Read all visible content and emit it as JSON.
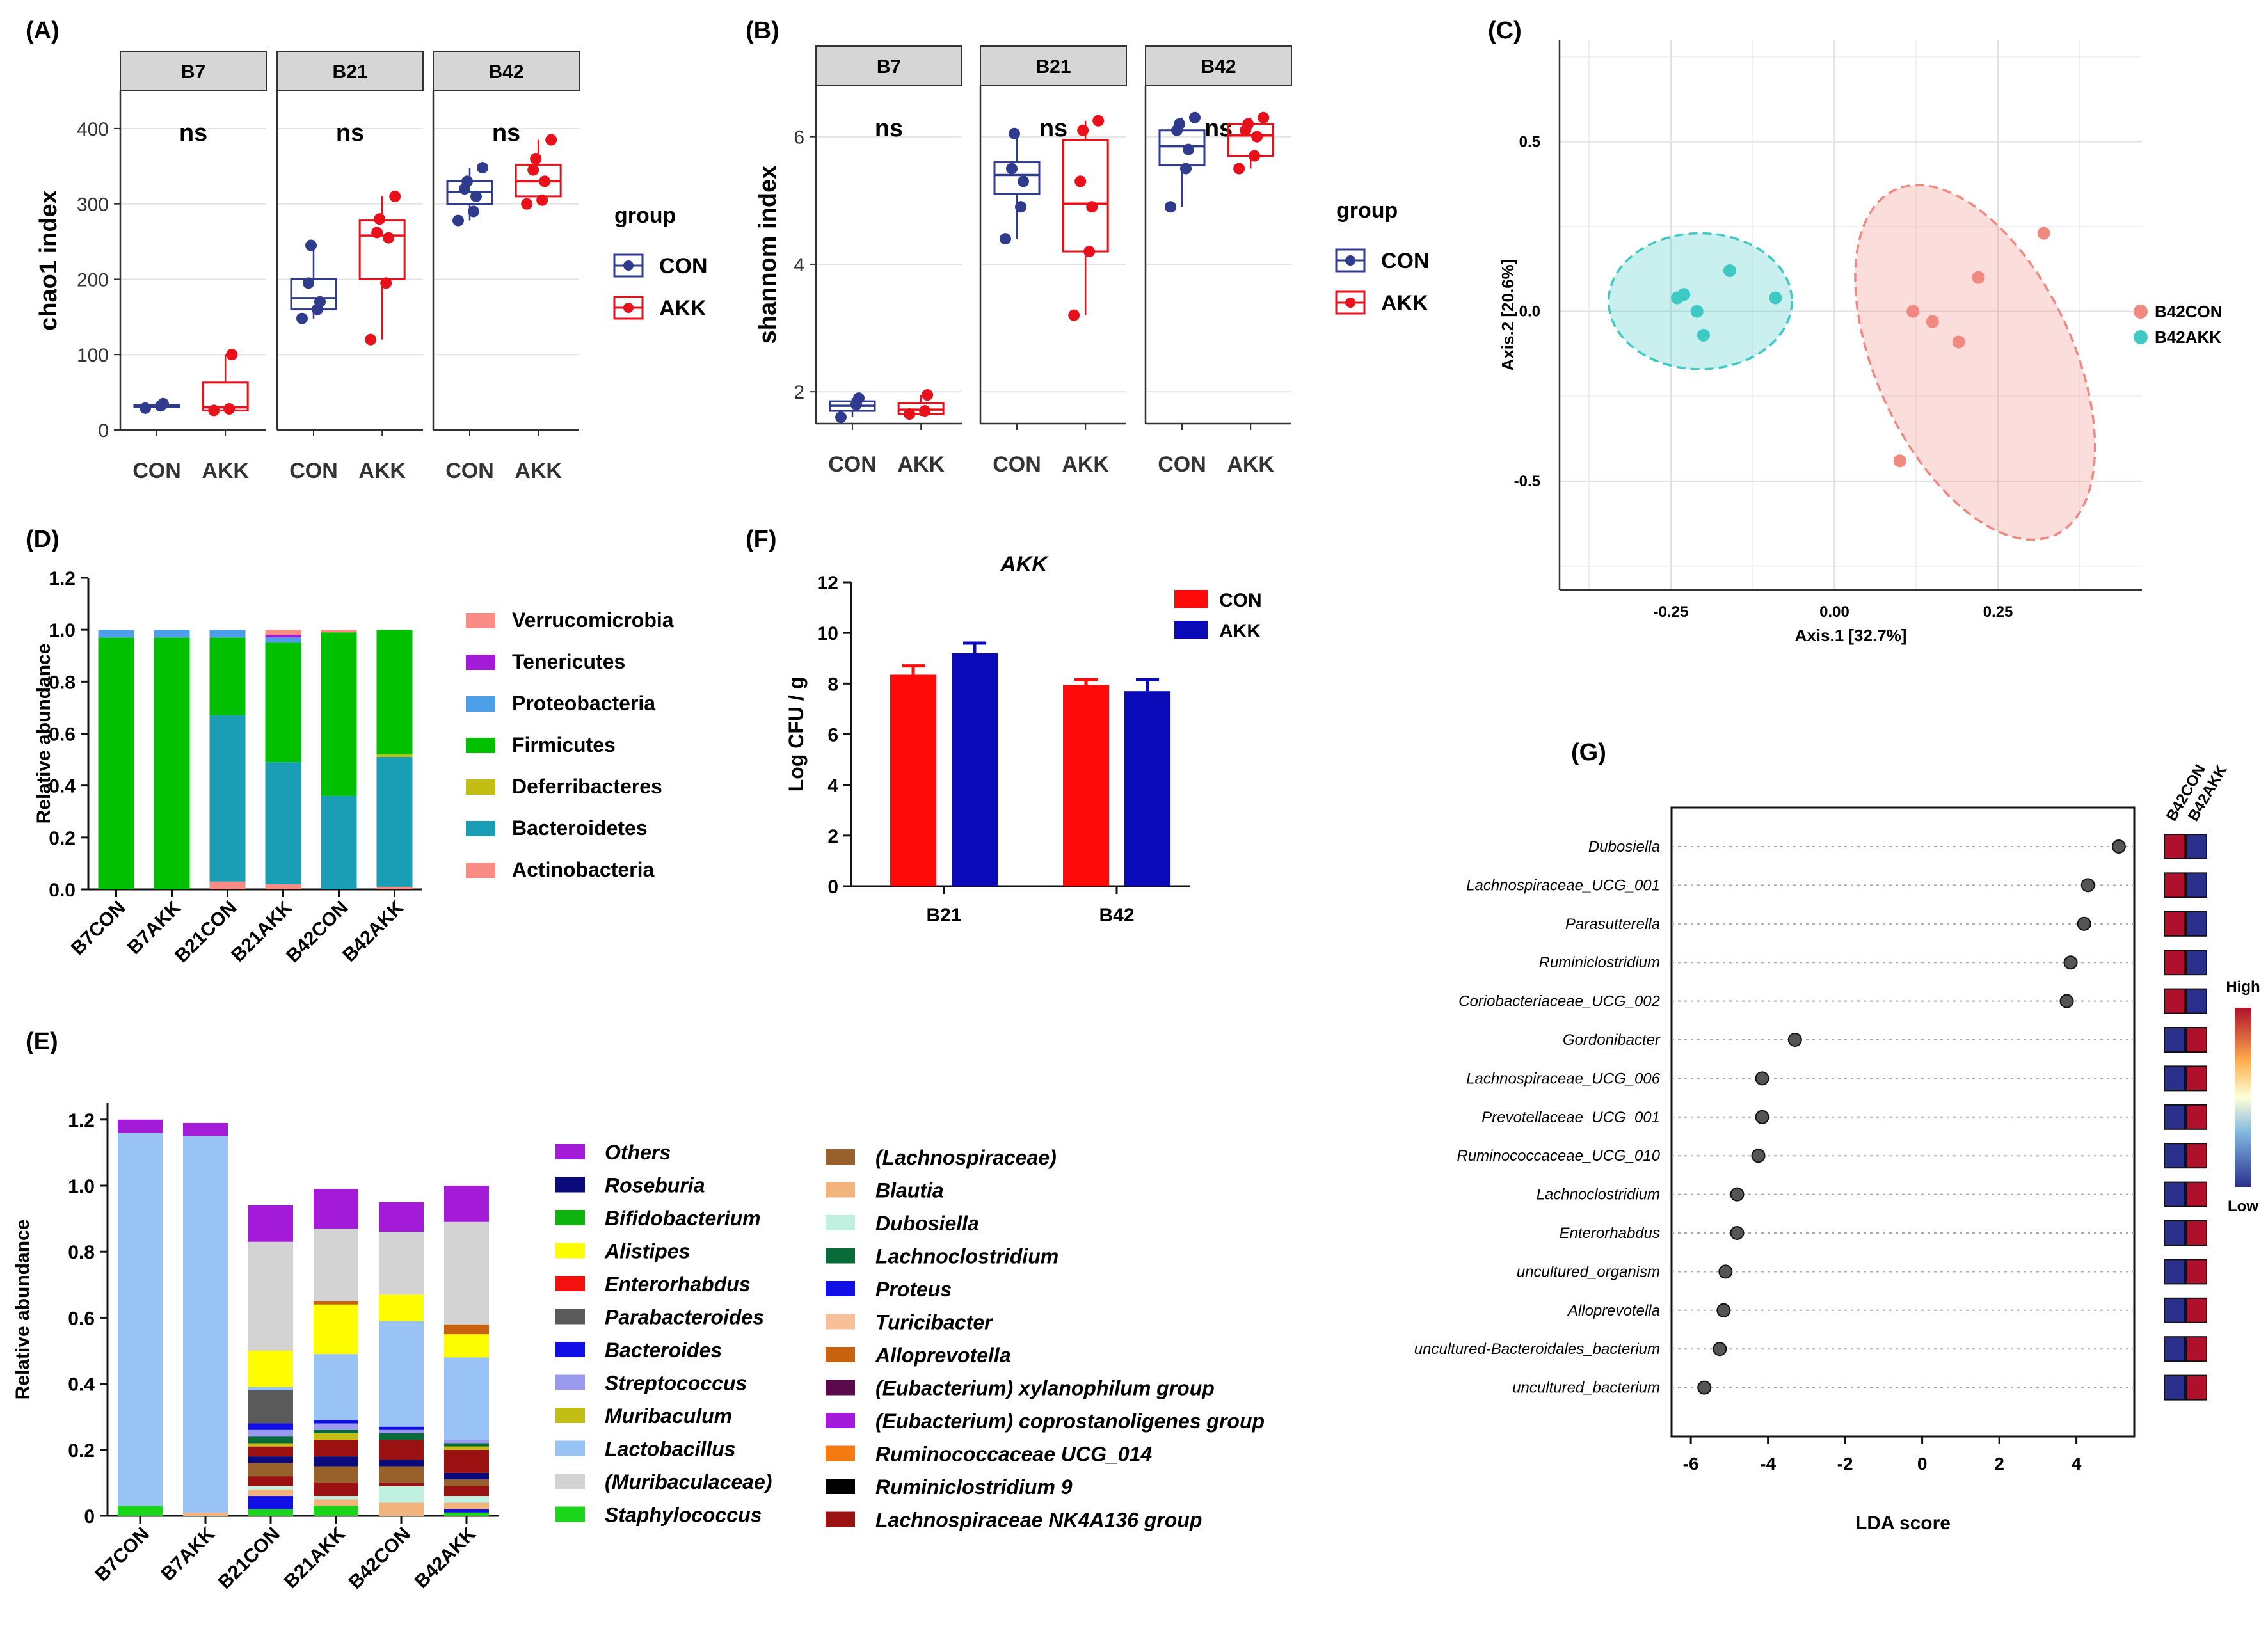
{
  "chart_data": [
    {
      "panel": "(A)",
      "type": "box",
      "ylabel": "chao1 index",
      "ylim": [
        0,
        450
      ],
      "yticks": [
        0,
        100,
        200,
        300,
        400
      ],
      "facets": [
        "B7",
        "B21",
        "B42"
      ],
      "groups": [
        "CON",
        "AKK"
      ],
      "legend_title": "group",
      "legend_labels": [
        "CON",
        "AKK"
      ],
      "sig_labels": [
        "ns",
        "ns",
        "ns"
      ],
      "boxes": [
        {
          "facet": "B7",
          "group": "CON",
          "q1": 31,
          "median": 32,
          "q3": 33,
          "wlo": 29,
          "whi": 35,
          "points": [
            29,
            32,
            35
          ]
        },
        {
          "facet": "B7",
          "group": "AKK",
          "q1": 26,
          "median": 30,
          "q3": 63,
          "wlo": 24,
          "whi": 100,
          "points": [
            26,
            28,
            100
          ]
        },
        {
          "facet": "B21",
          "group": "CON",
          "q1": 160,
          "median": 175,
          "q3": 200,
          "wlo": 148,
          "whi": 245,
          "points": [
            148,
            160,
            170,
            195,
            245
          ]
        },
        {
          "facet": "B21",
          "group": "AKK",
          "q1": 200,
          "median": 258,
          "q3": 278,
          "wlo": 120,
          "whi": 310,
          "points": [
            120,
            195,
            255,
            262,
            280,
            310
          ]
        },
        {
          "facet": "B42",
          "group": "CON",
          "q1": 300,
          "median": 316,
          "q3": 330,
          "wlo": 278,
          "whi": 348,
          "points": [
            278,
            290,
            310,
            320,
            330,
            348
          ]
        },
        {
          "facet": "B42",
          "group": "AKK",
          "q1": 310,
          "median": 330,
          "q3": 352,
          "wlo": 300,
          "whi": 385,
          "points": [
            300,
            305,
            330,
            345,
            360,
            385
          ]
        }
      ]
    },
    {
      "panel": "(B)",
      "type": "box",
      "ylabel": "shannom index",
      "ylim": [
        1.5,
        6.8
      ],
      "yticks": [
        2,
        4,
        6
      ],
      "facets": [
        "B7",
        "B21",
        "B42"
      ],
      "groups": [
        "CON",
        "AKK"
      ],
      "legend_title": "group",
      "legend_labels": [
        "CON",
        "AKK"
      ],
      "sig_labels": [
        "ns",
        "ns",
        "ns"
      ],
      "boxes": [
        {
          "facet": "B7",
          "group": "CON",
          "q1": 1.7,
          "median": 1.78,
          "q3": 1.85,
          "wlo": 1.6,
          "whi": 1.9,
          "points": [
            1.6,
            1.8,
            1.9
          ]
        },
        {
          "facet": "B7",
          "group": "AKK",
          "q1": 1.65,
          "median": 1.72,
          "q3": 1.82,
          "wlo": 1.62,
          "whi": 1.95,
          "points": [
            1.65,
            1.7,
            1.95
          ]
        },
        {
          "facet": "B21",
          "group": "CON",
          "q1": 5.1,
          "median": 5.4,
          "q3": 5.6,
          "wlo": 4.4,
          "whi": 6.05,
          "points": [
            4.4,
            4.9,
            5.3,
            5.5,
            6.05
          ]
        },
        {
          "facet": "B21",
          "group": "AKK",
          "q1": 4.2,
          "median": 4.95,
          "q3": 5.95,
          "wlo": 3.2,
          "whi": 6.25,
          "points": [
            3.2,
            4.2,
            4.9,
            5.3,
            6.1,
            6.25
          ]
        },
        {
          "facet": "B42",
          "group": "CON",
          "q1": 5.55,
          "median": 5.85,
          "q3": 6.1,
          "wlo": 4.9,
          "whi": 6.3,
          "points": [
            4.9,
            5.5,
            5.8,
            6.1,
            6.2,
            6.3
          ]
        },
        {
          "facet": "B42",
          "group": "AKK",
          "q1": 5.7,
          "median": 6.02,
          "q3": 6.2,
          "wlo": 5.5,
          "whi": 6.3,
          "points": [
            5.5,
            5.7,
            6.0,
            6.1,
            6.2,
            6.3
          ]
        }
      ]
    },
    {
      "panel": "(C)",
      "type": "scatter",
      "xlabel": "Axis.1  [32.7%]",
      "ylabel": "Axis.2  [20.6%]",
      "xlim": [
        -0.42,
        0.47
      ],
      "ylim": [
        -0.82,
        0.8
      ],
      "xticks": [
        -0.25,
        0.0,
        0.25
      ],
      "xtick_labels": [
        "-0.25",
        "0.00",
        "0.25"
      ],
      "yticks": [
        -0.5,
        0.0,
        0.5
      ],
      "ytick_labels": [
        "-0.5",
        "0.0",
        "0.5"
      ],
      "series": [
        {
          "name": "B42CON",
          "color": "#f08a80",
          "points": [
            [
              0.32,
              0.23
            ],
            [
              0.22,
              0.1
            ],
            [
              0.12,
              0.0
            ],
            [
              0.15,
              -0.03
            ],
            [
              0.19,
              -0.09
            ],
            [
              0.1,
              -0.44
            ]
          ],
          "ellipse": {
            "cx": 0.215,
            "cy": -0.15,
            "rx": 0.15,
            "ry": 0.56,
            "angle_deg": -25
          }
        },
        {
          "name": "B42AKK",
          "color": "#3ec9c4",
          "points": [
            [
              -0.24,
              0.04
            ],
            [
              -0.23,
              0.05
            ],
            [
              -0.21,
              0.0
            ],
            [
              -0.2,
              -0.07
            ],
            [
              -0.16,
              0.12
            ],
            [
              -0.09,
              0.04
            ]
          ],
          "ellipse": {
            "cx": -0.205,
            "cy": 0.03,
            "rx": 0.14,
            "ry": 0.2,
            "angle_deg": 0
          }
        }
      ],
      "legend": [
        "B42CON",
        "B42AKK"
      ]
    },
    {
      "panel": "(D)",
      "type": "stacked_bar",
      "ylabel": "Relative abundance",
      "ylim": [
        0,
        1.2
      ],
      "yticks": [
        0.0,
        0.2,
        0.4,
        0.6,
        0.8,
        1.0,
        1.2
      ],
      "ytick_labels": [
        "0.0",
        "0.2",
        "0.4",
        "0.6",
        "0.8",
        "1.0",
        "1.2"
      ],
      "categories": [
        "B7CON",
        "B7AKK",
        "B21CON",
        "B21AKK",
        "B42CON",
        "B42AKK"
      ],
      "legend_order": [
        "Verrucomicrobia",
        "Tenericutes",
        "Proteobacteria",
        "Firmicutes",
        "Deferribacteres",
        "Bacteroidetes",
        "Actinobacteria"
      ],
      "series": [
        {
          "name": "Actinobacteria",
          "color": "#f98c84",
          "values": [
            0.0,
            0.0,
            0.03,
            0.02,
            0.0,
            0.01
          ]
        },
        {
          "name": "Bacteroidetes",
          "color": "#1a9eb6",
          "values": [
            0.0,
            0.0,
            0.64,
            0.47,
            0.36,
            0.5
          ]
        },
        {
          "name": "Deferribacteres",
          "color": "#c3bd14",
          "values": [
            0.0,
            0.0,
            0.0,
            0.0,
            0.0,
            0.01
          ]
        },
        {
          "name": "Firmicutes",
          "color": "#00c000",
          "values": [
            0.97,
            0.97,
            0.3,
            0.46,
            0.63,
            0.48
          ]
        },
        {
          "name": "Proteobacteria",
          "color": "#4d9fea",
          "values": [
            0.03,
            0.03,
            0.03,
            0.02,
            0.0,
            0.0
          ]
        },
        {
          "name": "Tenericutes",
          "color": "#a41ad9",
          "values": [
            0.0,
            0.0,
            0.0,
            0.01,
            0.0,
            0.0
          ]
        },
        {
          "name": "Verrucomicrobia",
          "color": "#f98c84",
          "values": [
            0.0,
            0.0,
            0.0,
            0.02,
            0.01,
            0.0
          ]
        }
      ]
    },
    {
      "panel": "(E)",
      "type": "stacked_bar",
      "ylabel": "Relative abundance",
      "ylim": [
        0,
        1.25
      ],
      "yticks": [
        0.0,
        0.2,
        0.4,
        0.6,
        0.8,
        1.0,
        1.2
      ],
      "ytick_labels": [
        "0",
        "0.2",
        "0.4",
        "0.6",
        "0.8",
        "1.0",
        "1.2"
      ],
      "categories": [
        "B7CON",
        "B7AKK",
        "B21CON",
        "B21AKK",
        "B42CON",
        "B42AKK"
      ],
      "series": [
        {
          "name": "Staphylococcus",
          "color": "#1ad51a",
          "values": [
            0.03,
            0.0,
            0.02,
            0.03,
            0.0,
            0.01
          ]
        },
        {
          "name": "Bacteroides",
          "color": "#1010e6",
          "values": [
            0.0,
            0.0,
            0.04,
            0.0,
            0.0,
            0.01
          ]
        },
        {
          "name": "Blautia",
          "color": "#f0b47c",
          "values": [
            0.0,
            0.01,
            0.02,
            0.02,
            0.04,
            0.02
          ]
        },
        {
          "name": "Dubosiella",
          "color": "#bff0e0",
          "values": [
            0.0,
            0.0,
            0.01,
            0.01,
            0.05,
            0.02
          ]
        },
        {
          "name": "Lachnospiraceae NK4A136 group",
          "color": "#9b1010",
          "values": [
            0.0,
            0.0,
            0.03,
            0.04,
            0.01,
            0.03
          ]
        },
        {
          "name": "(Lachnospiraceae)",
          "color": "#98602a",
          "values": [
            0.0,
            0.0,
            0.04,
            0.05,
            0.05,
            0.02
          ]
        },
        {
          "name": "Roseburia",
          "color": "#0a0a7a",
          "values": [
            0.0,
            0.0,
            0.02,
            0.03,
            0.02,
            0.02
          ]
        },
        {
          "name": "Lachnospiraceae NK4A136 group",
          "color": "#9b1010",
          "values": [
            0.0,
            0.0,
            0.03,
            0.05,
            0.06,
            0.07
          ]
        },
        {
          "name": "Muribaculum",
          "color": "#c3bd14",
          "values": [
            0.0,
            0.0,
            0.01,
            0.02,
            0.0,
            0.01
          ]
        },
        {
          "name": "Lachnoclostridium",
          "color": "#0a6b3a",
          "values": [
            0.0,
            0.0,
            0.02,
            0.01,
            0.02,
            0.01
          ]
        },
        {
          "name": "Streptococcus",
          "color": "#9999ee",
          "values": [
            0.0,
            0.0,
            0.02,
            0.02,
            0.01,
            0.01
          ]
        },
        {
          "name": "Bacteroides",
          "color": "#1010e6",
          "values": [
            0.0,
            0.0,
            0.02,
            0.01,
            0.01,
            0.0
          ]
        },
        {
          "name": "Parabacteroides",
          "color": "#5a5a5a",
          "values": [
            0.0,
            0.0,
            0.1,
            0.0,
            0.0,
            0.0
          ]
        },
        {
          "name": "Lactobacillus",
          "color": "#99c2f5",
          "values": [
            1.13,
            1.14,
            0.01,
            0.2,
            0.32,
            0.25
          ]
        },
        {
          "name": "Alistipes",
          "color": "#fdfd00",
          "values": [
            0.0,
            0.0,
            0.11,
            0.15,
            0.08,
            0.07
          ]
        },
        {
          "name": "Alloprevotella",
          "color": "#c8620e",
          "values": [
            0.0,
            0.0,
            0.0,
            0.01,
            0.0,
            0.03
          ]
        },
        {
          "name": "(Muribaculaceae)",
          "color": "#d3d3d3",
          "values": [
            0.0,
            0.0,
            0.33,
            0.22,
            0.19,
            0.31
          ]
        },
        {
          "name": "Others",
          "color": "#a41ad9",
          "values": [
            0.04,
            0.04,
            0.11,
            0.12,
            0.09,
            0.11
          ]
        }
      ],
      "legend_col1": [
        "Others",
        "Roseburia",
        "Bifidobacterium",
        "Alistipes",
        "Enterorhabdus",
        "Parabacteroides",
        "Bacteroides",
        "Streptococcus",
        "Muribaculum",
        "Lactobacillus",
        "(Muribaculaceae)",
        "Staphylococcus"
      ],
      "legend_col1_colors": [
        "#a41ad9",
        "#0a0a7a",
        "#10b410",
        "#fdfd00",
        "#f51010",
        "#5a5a5a",
        "#1010e6",
        "#9999ee",
        "#c3bd14",
        "#99c2f5",
        "#d3d3d3",
        "#1ad51a"
      ],
      "legend_col2": [
        "(Lachnospiraceae)",
        "Blautia",
        "Dubosiella",
        "Lachnoclostridium",
        "Proteus",
        "Turicibacter",
        "Alloprevotella",
        "(Eubacterium) xylanophilum group",
        "(Eubacterium) coprostanoligenes group",
        "Ruminococcaceae UCG_014",
        "Ruminiclostridium 9",
        "Lachnospiraceae NK4A136 group"
      ],
      "legend_col2_colors": [
        "#98602a",
        "#f0b47c",
        "#bff0e0",
        "#0a6b3a",
        "#1010e6",
        "#f5c09a",
        "#c8620e",
        "#5a0a4a",
        "#a41ad9",
        "#f57a10",
        "#000000",
        "#9b1010"
      ]
    },
    {
      "panel": "(F)",
      "type": "bar",
      "title": "AKK",
      "ylabel": "Log CFU / g",
      "ylim": [
        0,
        12
      ],
      "yticks": [
        0,
        2,
        4,
        6,
        8,
        10,
        12
      ],
      "categories": [
        "B21",
        "B42"
      ],
      "series": [
        {
          "name": "CON",
          "color": "#ff0a0a",
          "values": [
            8.35,
            7.95
          ],
          "errors": [
            0.35,
            0.2
          ]
        },
        {
          "name": "AKK",
          "color": "#0a0ab8",
          "values": [
            9.2,
            7.7
          ],
          "errors": [
            0.4,
            0.45
          ]
        }
      ]
    },
    {
      "panel": "(G)",
      "type": "dot",
      "xlabel": "LDA score",
      "xlim": [
        -6.5,
        5.5
      ],
      "xticks": [
        -6,
        -4,
        -2,
        0,
        2,
        4
      ],
      "taxa": [
        "Dubosiella",
        "Lachnospiraceae_UCG_001",
        "Parasutterella",
        "Ruminiclostridium",
        "Coriobacteriaceae_UCG_002",
        "Gordonibacter",
        "Lachnospiraceae_UCG_006",
        "Prevotellaceae_UCG_001",
        "Ruminococcaceae_UCG_010",
        "Lachnoclostridium",
        "Enterorhabdus",
        "uncultured_organism",
        "Alloprevotella",
        "uncultured-Bacteroidales_bacterium",
        "uncultured_bacterium"
      ],
      "values": [
        5.1,
        4.3,
        4.2,
        3.85,
        3.75,
        -3.3,
        -4.15,
        -4.15,
        -4.25,
        -4.8,
        -4.8,
        -5.1,
        -5.15,
        -5.25,
        -5.65
      ],
      "heat_columns": [
        "B42CON",
        "B42AKK"
      ],
      "heat_legend": {
        "high": "High",
        "low": "Low"
      }
    }
  ],
  "panel_labels": {
    "A": "(A)",
    "B": "(B)",
    "C": "(C)",
    "D": "(D)",
    "E": "(E)",
    "F": "(F)",
    "G": "(G)"
  }
}
